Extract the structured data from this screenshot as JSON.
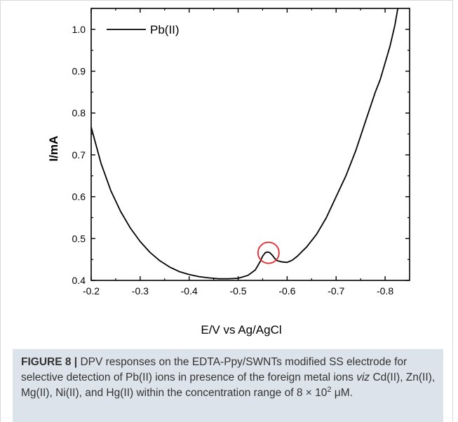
{
  "chart_data": {
    "type": "line",
    "xlabel": "E/V vs Ag/AgCl",
    "ylabel": "I/mA",
    "xlim": [
      -0.2,
      -0.85
    ],
    "ylim": [
      0.4,
      1.05
    ],
    "x_reversed": true,
    "x_ticks": [
      "-0.2",
      "-0.3",
      "-0.4",
      "-0.5",
      "-0.6",
      "-0.7",
      "-0.8"
    ],
    "y_ticks": [
      "0.4",
      "0.5",
      "0.6",
      "0.7",
      "0.8",
      "0.9",
      "1.0"
    ],
    "legend_position": "top-left",
    "grid": false,
    "series": [
      {
        "name": "Pb(II)",
        "color": "#000000",
        "x": [
          -0.2,
          -0.22,
          -0.24,
          -0.26,
          -0.28,
          -0.3,
          -0.32,
          -0.34,
          -0.36,
          -0.38,
          -0.4,
          -0.42,
          -0.44,
          -0.46,
          -0.48,
          -0.5,
          -0.52,
          -0.535,
          -0.545,
          -0.55,
          -0.555,
          -0.56,
          -0.565,
          -0.57,
          -0.575,
          -0.58,
          -0.59,
          -0.6,
          -0.61,
          -0.62,
          -0.64,
          -0.66,
          -0.68,
          -0.7,
          -0.72,
          -0.74,
          -0.76,
          -0.78,
          -0.79,
          -0.8,
          -0.81,
          -0.82,
          -0.826
        ],
        "y": [
          0.766,
          0.68,
          0.615,
          0.565,
          0.525,
          0.493,
          0.467,
          0.447,
          0.432,
          0.421,
          0.414,
          0.409,
          0.406,
          0.404,
          0.404,
          0.405,
          0.412,
          0.425,
          0.445,
          0.458,
          0.466,
          0.468,
          0.466,
          0.46,
          0.452,
          0.447,
          0.444,
          0.443,
          0.448,
          0.457,
          0.48,
          0.51,
          0.55,
          0.6,
          0.65,
          0.71,
          0.78,
          0.85,
          0.88,
          0.92,
          0.96,
          1.01,
          1.05
        ]
      }
    ],
    "annotation": {
      "type": "circle",
      "color": "#e8262b",
      "x": -0.562,
      "y": 0.466
    }
  },
  "caption": {
    "label": "FIGURE 8 |",
    "text_before": " DPV responses on the EDTA-Ppy/SWNTs modified SS electrode for selective detection of Pb(II) ions in presence of the foreign metal ions ",
    "viz": "viz",
    "text_after": " Cd(II), Zn(II), Mg(II), Ni(II), and Hg(II) within the concentration range of 8 × 10",
    "sup": "2",
    "unit": " μM."
  }
}
